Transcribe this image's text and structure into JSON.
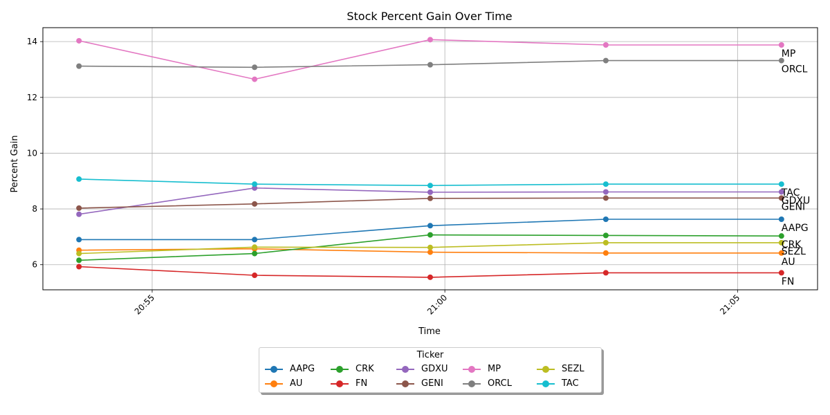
{
  "chart_data": {
    "type": "line",
    "title": "Stock Percent Gain Over Time",
    "xlabel": "Time",
    "ylabel": "Percent Gain",
    "x": [
      "20:53:45",
      "20:56:45",
      "20:59:45",
      "21:02:45",
      "21:05:45"
    ],
    "xticks": [
      {
        "value": "20:55:00",
        "label": "20:55"
      },
      {
        "value": "21:00:00",
        "label": "21:00"
      },
      {
        "value": "21:05:00",
        "label": "21:05"
      }
    ],
    "xlim": [
      "20:53:08",
      "21:06:22"
    ],
    "ylim": [
      5.1,
      14.5
    ],
    "yticks": [
      6,
      8,
      10,
      12,
      14
    ],
    "grid": true,
    "legend": {
      "title": "Ticker",
      "placement": "bottom-center"
    },
    "series": [
      {
        "name": "AAPG",
        "color": "#1f77b4",
        "values": [
          6.9,
          6.9,
          7.4,
          7.63,
          7.63
        ]
      },
      {
        "name": "AU",
        "color": "#ff7f0e",
        "values": [
          6.52,
          6.57,
          6.45,
          6.42,
          6.42
        ]
      },
      {
        "name": "CRK",
        "color": "#2ca02c",
        "values": [
          6.16,
          6.4,
          7.07,
          7.05,
          7.03
        ]
      },
      {
        "name": "FN",
        "color": "#d62728",
        "values": [
          5.93,
          5.62,
          5.55,
          5.71,
          5.71
        ]
      },
      {
        "name": "GDXU",
        "color": "#9467bd",
        "values": [
          7.81,
          8.75,
          8.6,
          8.61,
          8.61
        ]
      },
      {
        "name": "GENI",
        "color": "#8c564b",
        "values": [
          8.03,
          8.18,
          8.38,
          8.39,
          8.39
        ]
      },
      {
        "name": "MP",
        "color": "#e377c2",
        "values": [
          14.03,
          12.65,
          14.07,
          13.88,
          13.88
        ]
      },
      {
        "name": "ORCL",
        "color": "#7f7f7f",
        "values": [
          13.12,
          13.08,
          13.17,
          13.32,
          13.32
        ]
      },
      {
        "name": "SEZL",
        "color": "#bcbd22",
        "values": [
          6.4,
          6.63,
          6.62,
          6.79,
          6.79
        ]
      },
      {
        "name": "TAC",
        "color": "#17becf",
        "values": [
          9.07,
          8.89,
          8.84,
          8.89,
          8.89
        ]
      }
    ],
    "end_labels": [
      "MP",
      "ORCL",
      "TAC",
      "GDXU",
      "GENI",
      "AAPG",
      "CRK",
      "SEZL",
      "AU",
      "FN"
    ]
  }
}
